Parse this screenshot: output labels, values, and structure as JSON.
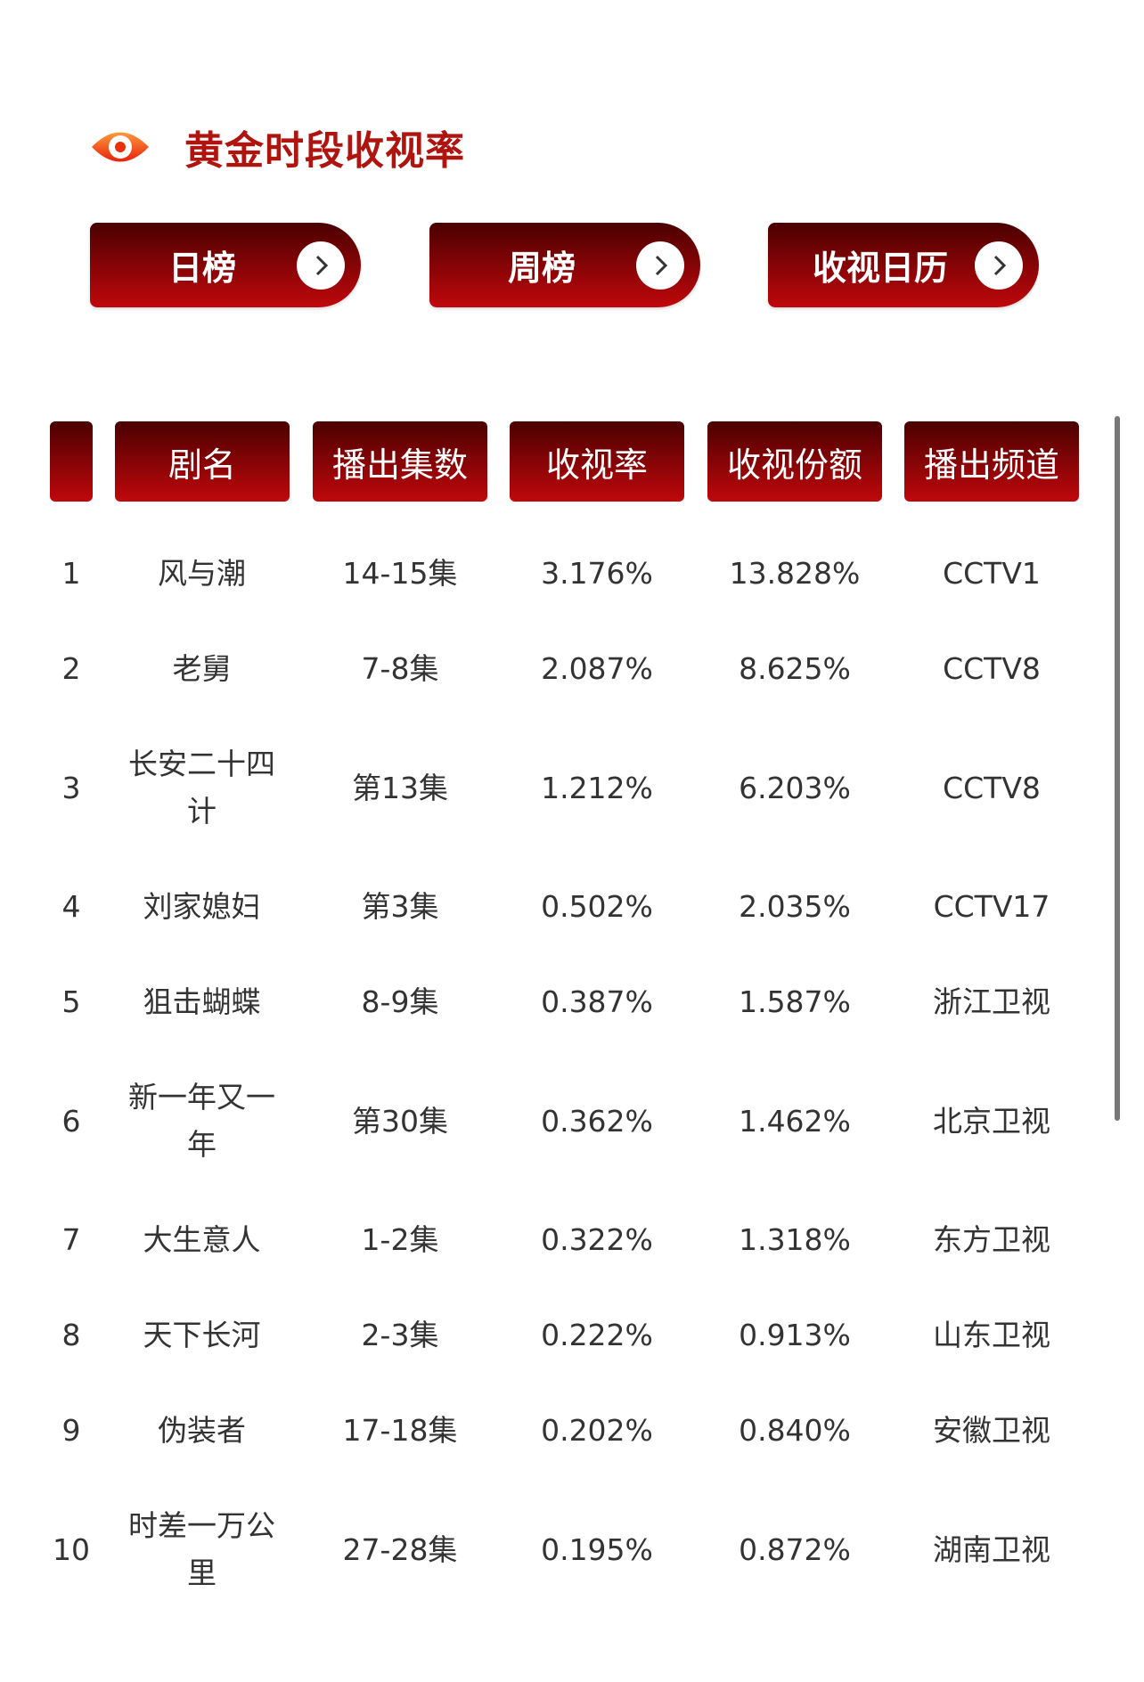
{
  "header": {
    "title": "黄金时段收视率",
    "icon": "eye-icon",
    "accent": "#b0140f"
  },
  "nav_buttons": [
    {
      "label": "日榜",
      "icon": "chevron-right-icon"
    },
    {
      "label": "周榜",
      "icon": "chevron-right-icon"
    },
    {
      "label": "收视日历",
      "icon": "chevron-right-icon"
    }
  ],
  "table": {
    "columns": [
      "",
      "剧名",
      "播出集数",
      "收视率",
      "收视份额",
      "播出频道"
    ],
    "rows": [
      {
        "rank": "1",
        "name": "风与潮",
        "episodes": "14-15集",
        "rating": "3.176%",
        "share": "13.828%",
        "channel": "CCTV1"
      },
      {
        "rank": "2",
        "name": "老舅",
        "episodes": "7-8集",
        "rating": "2.087%",
        "share": "8.625%",
        "channel": "CCTV8"
      },
      {
        "rank": "3",
        "name": "长安二十四计",
        "episodes": "第13集",
        "rating": "1.212%",
        "share": "6.203%",
        "channel": "CCTV8"
      },
      {
        "rank": "4",
        "name": "刘家媳妇",
        "episodes": "第3集",
        "rating": "0.502%",
        "share": "2.035%",
        "channel": "CCTV17"
      },
      {
        "rank": "5",
        "name": "狙击蝴蝶",
        "episodes": "8-9集",
        "rating": "0.387%",
        "share": "1.587%",
        "channel": "浙江卫视"
      },
      {
        "rank": "6",
        "name": "新一年又一年",
        "episodes": "第30集",
        "rating": "0.362%",
        "share": "1.462%",
        "channel": "北京卫视"
      },
      {
        "rank": "7",
        "name": "大生意人",
        "episodes": "1-2集",
        "rating": "0.322%",
        "share": "1.318%",
        "channel": "东方卫视"
      },
      {
        "rank": "8",
        "name": "天下长河",
        "episodes": "2-3集",
        "rating": "0.222%",
        "share": "0.913%",
        "channel": "山东卫视"
      },
      {
        "rank": "9",
        "name": "伪装者",
        "episodes": "17-18集",
        "rating": "0.202%",
        "share": "0.840%",
        "channel": "安徽卫视"
      },
      {
        "rank": "10",
        "name": "时差一万公里",
        "episodes": "27-28集",
        "rating": "0.195%",
        "share": "0.872%",
        "channel": "湖南卫视"
      }
    ]
  }
}
